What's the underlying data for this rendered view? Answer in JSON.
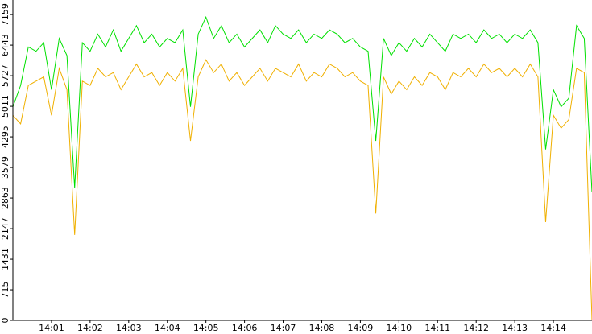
{
  "chart_data": {
    "type": "line",
    "x": [
      0,
      0.2,
      0.4,
      0.6,
      0.8,
      1,
      1.2,
      1.4,
      1.6,
      1.8,
      2,
      2.2,
      2.4,
      2.6,
      2.8,
      3,
      3.2,
      3.4,
      3.6,
      3.8,
      4,
      4.2,
      4.4,
      4.6,
      4.8,
      5,
      5.2,
      5.4,
      5.6,
      5.8,
      6,
      6.2,
      6.4,
      6.6,
      6.8,
      7,
      7.2,
      7.4,
      7.6,
      7.8,
      8,
      8.2,
      8.4,
      8.6,
      8.8,
      9,
      9.2,
      9.4,
      9.6,
      9.8,
      10,
      10.2,
      10.4,
      10.6,
      10.8,
      11,
      11.2,
      11.4,
      11.6,
      11.8,
      12,
      12.2,
      12.4,
      12.6,
      12.8,
      13,
      13.2,
      13.4,
      13.6,
      13.8,
      14,
      14.2,
      14.4,
      14.6,
      14.8,
      15
    ],
    "series": [
      {
        "color": "#00e000",
        "values": [
          5000,
          5500,
          6400,
          6300,
          6500,
          5400,
          6600,
          6200,
          3100,
          6500,
          6300,
          6700,
          6400,
          6800,
          6300,
          6600,
          6900,
          6500,
          6700,
          6400,
          6600,
          6500,
          6800,
          5000,
          6700,
          7100,
          6600,
          6900,
          6500,
          6700,
          6400,
          6600,
          6800,
          6500,
          6900,
          6700,
          6600,
          6800,
          6500,
          6700,
          6600,
          6800,
          6700,
          6500,
          6600,
          6400,
          6300,
          4200,
          6600,
          6200,
          6500,
          6300,
          6600,
          6400,
          6700,
          6500,
          6300,
          6700,
          6600,
          6700,
          6500,
          6800,
          6600,
          6700,
          6500,
          6700,
          6600,
          6800,
          6500,
          4000,
          5400,
          5000,
          5200,
          6900,
          6600,
          3000
        ]
      },
      {
        "color": "#f0b000",
        "values": [
          4800,
          4600,
          5500,
          5600,
          5700,
          4800,
          5900,
          5400,
          2000,
          5600,
          5500,
          5900,
          5700,
          5800,
          5400,
          5700,
          6000,
          5700,
          5800,
          5500,
          5800,
          5600,
          5900,
          4200,
          5700,
          6100,
          5800,
          6000,
          5600,
          5800,
          5500,
          5700,
          5900,
          5600,
          5900,
          5800,
          5700,
          6000,
          5600,
          5800,
          5700,
          6000,
          5900,
          5700,
          5800,
          5600,
          5500,
          2500,
          5700,
          5300,
          5600,
          5400,
          5700,
          5500,
          5800,
          5700,
          5400,
          5800,
          5700,
          5900,
          5700,
          6000,
          5800,
          5900,
          5700,
          5900,
          5700,
          6000,
          5700,
          2300,
          4800,
          4500,
          4700,
          5900,
          5800,
          0
        ]
      }
    ],
    "xlim": [
      0,
      15
    ],
    "xticks": [
      {
        "value": 1,
        "label": "14:01"
      },
      {
        "value": 2,
        "label": "14:02"
      },
      {
        "value": 3,
        "label": "14:03"
      },
      {
        "value": 4,
        "label": "14:04"
      },
      {
        "value": 5,
        "label": "14:05"
      },
      {
        "value": 6,
        "label": "14:06"
      },
      {
        "value": 7,
        "label": "14:07"
      },
      {
        "value": 8,
        "label": "14:08"
      },
      {
        "value": 9,
        "label": "14:09"
      },
      {
        "value": 10,
        "label": "14:10"
      },
      {
        "value": 11,
        "label": "14:11"
      },
      {
        "value": 12,
        "label": "14:12"
      },
      {
        "value": 13,
        "label": "14:13"
      },
      {
        "value": 14,
        "label": "14:14"
      }
    ],
    "ylim": [
      0,
      7500
    ],
    "yticks": [
      0,
      715,
      1431,
      2147,
      2863,
      3579,
      4295,
      5011,
      5727,
      6443,
      7159
    ]
  }
}
